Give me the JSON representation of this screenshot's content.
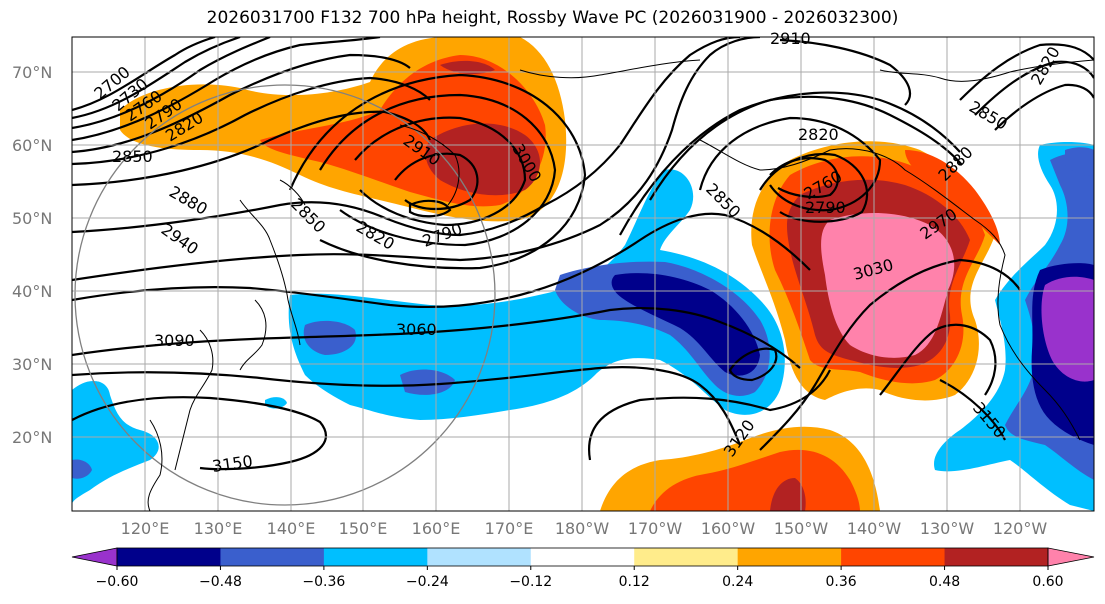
{
  "title": "2026031700 F132 700 hPa height, Rossby Wave PC (2026031900 - 2026032300)",
  "map": {
    "lat_labels": [
      "70°N",
      "60°N",
      "50°N",
      "40°N",
      "30°N",
      "20°N"
    ],
    "lon_labels": [
      "120°E",
      "130°E",
      "140°E",
      "150°E",
      "160°E",
      "170°E",
      "180°W",
      "170°W",
      "160°W",
      "150°W",
      "140°W",
      "130°W",
      "120°W"
    ],
    "grid": true,
    "contour_labels": [
      "2700",
      "2730",
      "2760",
      "2790",
      "2820",
      "2850",
      "2880",
      "2940",
      "2910",
      "2850",
      "2820",
      "2790",
      "3000",
      "3060",
      "3090",
      "3150",
      "2910",
      "2820",
      "2850",
      "2760",
      "2790",
      "2970",
      "3030",
      "3120",
      "3150",
      "2880",
      "2850",
      "2820"
    ]
  },
  "colorbar": {
    "ticks": [
      "−0.60",
      "−0.48",
      "−0.36",
      "−0.24",
      "−0.12",
      "0.12",
      "0.24",
      "0.36",
      "0.48",
      "0.60"
    ],
    "colors": [
      "#9932cc",
      "#00008b",
      "#3a5fcd",
      "#00bfff",
      "#b0e2ff",
      "#ffffff",
      "#ffec8b",
      "#ffa500",
      "#ff4500",
      "#b22222",
      "#ff82ab"
    ]
  }
}
